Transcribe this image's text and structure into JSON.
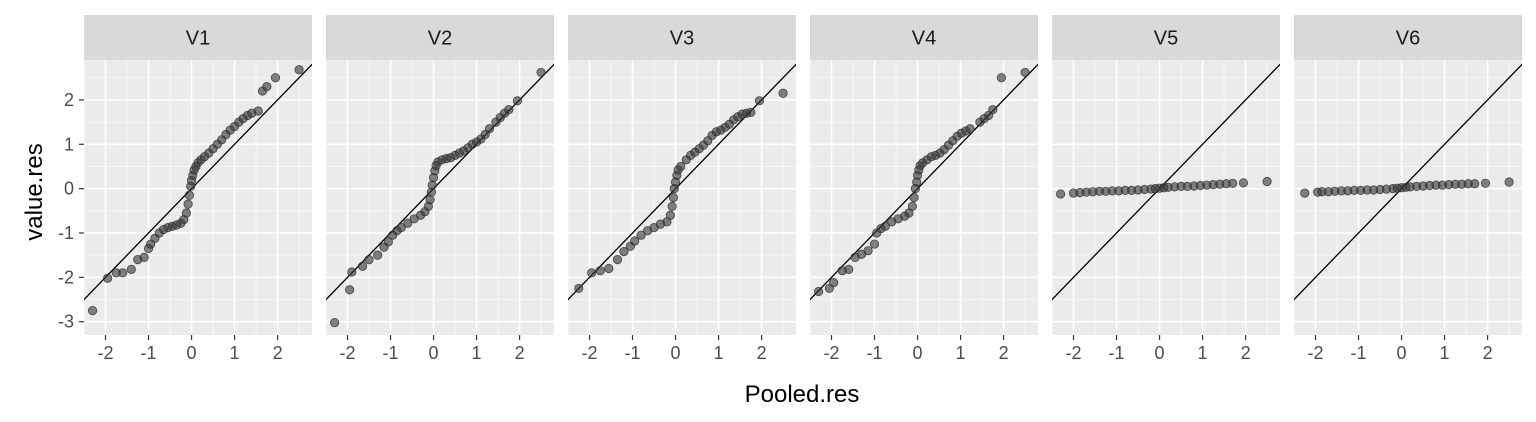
{
  "chart_data": {
    "type": "scatter",
    "xlabel": "Pooled.res",
    "ylabel": "value.res",
    "xlim": [
      -2.5,
      2.8
    ],
    "ylim": [
      -3.3,
      2.9
    ],
    "x_ticks": [
      "-2",
      "-1",
      "0",
      "1",
      "2"
    ],
    "y_ticks": [
      "-3",
      "-2",
      "-1",
      "0",
      "1",
      "2"
    ],
    "x_tick_values": [
      -2,
      -1,
      0,
      1,
      2
    ],
    "y_tick_values": [
      -3,
      -2,
      -1,
      0,
      1,
      2
    ],
    "reference_line": {
      "intercept": 0,
      "slope": 1
    },
    "grid": true,
    "colors": {
      "panel_bg": "#ebebeb",
      "strip_bg": "#d9d9d9",
      "grid_major": "#ffffff",
      "point_fill": "#333333",
      "line": "#000000"
    },
    "facets": [
      {
        "label": "V1",
        "points": [
          [
            -2.3,
            -2.75
          ],
          [
            -1.95,
            -2.02
          ],
          [
            -1.75,
            -1.9
          ],
          [
            -1.6,
            -1.9
          ],
          [
            -1.4,
            -1.82
          ],
          [
            -1.25,
            -1.6
          ],
          [
            -1.1,
            -1.55
          ],
          [
            -1.0,
            -1.35
          ],
          [
            -0.95,
            -1.25
          ],
          [
            -0.85,
            -1.12
          ],
          [
            -0.75,
            -1.0
          ],
          [
            -0.65,
            -0.92
          ],
          [
            -0.55,
            -0.88
          ],
          [
            -0.45,
            -0.85
          ],
          [
            -0.35,
            -0.82
          ],
          [
            -0.25,
            -0.78
          ],
          [
            -0.18,
            -0.7
          ],
          [
            -0.12,
            -0.55
          ],
          [
            -0.08,
            -0.35
          ],
          [
            -0.05,
            -0.15
          ],
          [
            -0.02,
            0.05
          ],
          [
            0.0,
            0.18
          ],
          [
            0.03,
            0.3
          ],
          [
            0.06,
            0.42
          ],
          [
            0.1,
            0.5
          ],
          [
            0.15,
            0.58
          ],
          [
            0.22,
            0.65
          ],
          [
            0.3,
            0.72
          ],
          [
            0.4,
            0.8
          ],
          [
            0.5,
            0.9
          ],
          [
            0.6,
            1.0
          ],
          [
            0.7,
            1.1
          ],
          [
            0.8,
            1.22
          ],
          [
            0.9,
            1.32
          ],
          [
            1.0,
            1.4
          ],
          [
            1.1,
            1.5
          ],
          [
            1.2,
            1.58
          ],
          [
            1.3,
            1.65
          ],
          [
            1.4,
            1.7
          ],
          [
            1.55,
            1.75
          ],
          [
            1.65,
            2.2
          ],
          [
            1.75,
            2.3
          ],
          [
            1.95,
            2.5
          ],
          [
            2.5,
            2.68
          ]
        ]
      },
      {
        "label": "V2",
        "points": [
          [
            -2.3,
            -3.02
          ],
          [
            -1.95,
            -2.28
          ],
          [
            -1.9,
            -1.88
          ],
          [
            -1.65,
            -1.75
          ],
          [
            -1.5,
            -1.6
          ],
          [
            -1.3,
            -1.5
          ],
          [
            -1.15,
            -1.32
          ],
          [
            -1.05,
            -1.2
          ],
          [
            -0.95,
            -1.05
          ],
          [
            -0.85,
            -0.95
          ],
          [
            -0.75,
            -0.88
          ],
          [
            -0.6,
            -0.78
          ],
          [
            -0.45,
            -0.68
          ],
          [
            -0.3,
            -0.6
          ],
          [
            -0.2,
            -0.52
          ],
          [
            -0.12,
            -0.4
          ],
          [
            -0.08,
            -0.25
          ],
          [
            -0.05,
            -0.08
          ],
          [
            -0.03,
            0.08
          ],
          [
            0.0,
            0.25
          ],
          [
            0.03,
            0.4
          ],
          [
            0.06,
            0.52
          ],
          [
            0.1,
            0.6
          ],
          [
            0.2,
            0.65
          ],
          [
            0.3,
            0.68
          ],
          [
            0.4,
            0.7
          ],
          [
            0.5,
            0.75
          ],
          [
            0.6,
            0.8
          ],
          [
            0.7,
            0.85
          ],
          [
            0.8,
            0.92
          ],
          [
            0.9,
            1.0
          ],
          [
            1.0,
            1.05
          ],
          [
            1.1,
            1.12
          ],
          [
            1.2,
            1.22
          ],
          [
            1.3,
            1.35
          ],
          [
            1.45,
            1.5
          ],
          [
            1.55,
            1.6
          ],
          [
            1.65,
            1.7
          ],
          [
            1.75,
            1.78
          ],
          [
            1.95,
            1.98
          ],
          [
            2.5,
            2.62
          ]
        ]
      },
      {
        "label": "V3",
        "points": [
          [
            -2.25,
            -2.25
          ],
          [
            -1.95,
            -1.9
          ],
          [
            -1.75,
            -1.85
          ],
          [
            -1.55,
            -1.8
          ],
          [
            -1.35,
            -1.6
          ],
          [
            -1.2,
            -1.42
          ],
          [
            -1.05,
            -1.3
          ],
          [
            -0.95,
            -1.18
          ],
          [
            -0.8,
            -1.05
          ],
          [
            -0.65,
            -0.95
          ],
          [
            -0.5,
            -0.88
          ],
          [
            -0.35,
            -0.8
          ],
          [
            -0.2,
            -0.75
          ],
          [
            -0.12,
            -0.6
          ],
          [
            -0.08,
            -0.4
          ],
          [
            -0.05,
            -0.2
          ],
          [
            -0.03,
            0.0
          ],
          [
            0.0,
            0.15
          ],
          [
            0.03,
            0.3
          ],
          [
            0.06,
            0.42
          ],
          [
            0.12,
            0.5
          ],
          [
            0.25,
            0.65
          ],
          [
            0.35,
            0.75
          ],
          [
            0.45,
            0.82
          ],
          [
            0.55,
            0.9
          ],
          [
            0.65,
            0.98
          ],
          [
            0.75,
            1.08
          ],
          [
            0.85,
            1.2
          ],
          [
            0.95,
            1.28
          ],
          [
            1.05,
            1.32
          ],
          [
            1.15,
            1.38
          ],
          [
            1.25,
            1.45
          ],
          [
            1.35,
            1.55
          ],
          [
            1.45,
            1.62
          ],
          [
            1.55,
            1.68
          ],
          [
            1.65,
            1.7
          ],
          [
            1.75,
            1.72
          ],
          [
            1.95,
            1.98
          ],
          [
            2.5,
            2.15
          ]
        ]
      },
      {
        "label": "V4",
        "points": [
          [
            -2.3,
            -2.32
          ],
          [
            -2.05,
            -2.25
          ],
          [
            -1.95,
            -2.12
          ],
          [
            -1.75,
            -1.85
          ],
          [
            -1.6,
            -1.82
          ],
          [
            -1.45,
            -1.55
          ],
          [
            -1.3,
            -1.48
          ],
          [
            -1.15,
            -1.4
          ],
          [
            -1.0,
            -1.25
          ],
          [
            -0.95,
            -1.0
          ],
          [
            -0.85,
            -0.9
          ],
          [
            -0.75,
            -0.85
          ],
          [
            -0.6,
            -0.75
          ],
          [
            -0.45,
            -0.68
          ],
          [
            -0.3,
            -0.62
          ],
          [
            -0.2,
            -0.55
          ],
          [
            -0.12,
            -0.4
          ],
          [
            -0.08,
            -0.2
          ],
          [
            -0.05,
            0.0
          ],
          [
            -0.02,
            0.15
          ],
          [
            0.0,
            0.3
          ],
          [
            0.03,
            0.42
          ],
          [
            0.06,
            0.52
          ],
          [
            0.12,
            0.58
          ],
          [
            0.22,
            0.65
          ],
          [
            0.32,
            0.72
          ],
          [
            0.42,
            0.75
          ],
          [
            0.52,
            0.8
          ],
          [
            0.62,
            0.88
          ],
          [
            0.72,
            0.98
          ],
          [
            0.82,
            1.08
          ],
          [
            0.92,
            1.18
          ],
          [
            1.02,
            1.25
          ],
          [
            1.12,
            1.3
          ],
          [
            1.22,
            1.35
          ],
          [
            1.45,
            1.5
          ],
          [
            1.55,
            1.58
          ],
          [
            1.65,
            1.65
          ],
          [
            1.75,
            1.78
          ],
          [
            1.95,
            2.5
          ],
          [
            2.5,
            2.62
          ]
        ]
      },
      {
        "label": "V5",
        "points": [
          [
            -2.3,
            -0.12
          ],
          [
            -2.0,
            -0.1
          ],
          [
            -1.85,
            -0.09
          ],
          [
            -1.7,
            -0.08
          ],
          [
            -1.55,
            -0.07
          ],
          [
            -1.4,
            -0.06
          ],
          [
            -1.25,
            -0.06
          ],
          [
            -1.1,
            -0.05
          ],
          [
            -0.95,
            -0.05
          ],
          [
            -0.8,
            -0.04
          ],
          [
            -0.65,
            -0.04
          ],
          [
            -0.5,
            -0.03
          ],
          [
            -0.35,
            -0.02
          ],
          [
            -0.2,
            -0.01
          ],
          [
            -0.1,
            0.0
          ],
          [
            0.0,
            0.01
          ],
          [
            0.1,
            0.02
          ],
          [
            0.2,
            0.03
          ],
          [
            0.35,
            0.04
          ],
          [
            0.5,
            0.05
          ],
          [
            0.65,
            0.05
          ],
          [
            0.8,
            0.06
          ],
          [
            0.95,
            0.07
          ],
          [
            1.1,
            0.08
          ],
          [
            1.25,
            0.09
          ],
          [
            1.4,
            0.1
          ],
          [
            1.55,
            0.11
          ],
          [
            1.7,
            0.12
          ],
          [
            1.95,
            0.13
          ],
          [
            2.5,
            0.16
          ]
        ]
      },
      {
        "label": "V6",
        "points": [
          [
            -2.25,
            -0.1
          ],
          [
            -1.95,
            -0.08
          ],
          [
            -1.85,
            -0.07
          ],
          [
            -1.7,
            -0.07
          ],
          [
            -1.55,
            -0.06
          ],
          [
            -1.4,
            -0.05
          ],
          [
            -1.25,
            -0.05
          ],
          [
            -1.1,
            -0.04
          ],
          [
            -0.95,
            -0.04
          ],
          [
            -0.8,
            -0.03
          ],
          [
            -0.65,
            -0.03
          ],
          [
            -0.5,
            -0.02
          ],
          [
            -0.35,
            -0.01
          ],
          [
            -0.2,
            0.0
          ],
          [
            -0.1,
            0.01
          ],
          [
            0.0,
            0.02
          ],
          [
            0.1,
            0.03
          ],
          [
            0.2,
            0.04
          ],
          [
            0.35,
            0.05
          ],
          [
            0.5,
            0.06
          ],
          [
            0.65,
            0.07
          ],
          [
            0.8,
            0.08
          ],
          [
            0.95,
            0.08
          ],
          [
            1.1,
            0.09
          ],
          [
            1.25,
            0.1
          ],
          [
            1.4,
            0.1
          ],
          [
            1.55,
            0.11
          ],
          [
            1.7,
            0.11
          ],
          [
            1.95,
            0.12
          ],
          [
            2.5,
            0.15
          ]
        ]
      }
    ]
  }
}
